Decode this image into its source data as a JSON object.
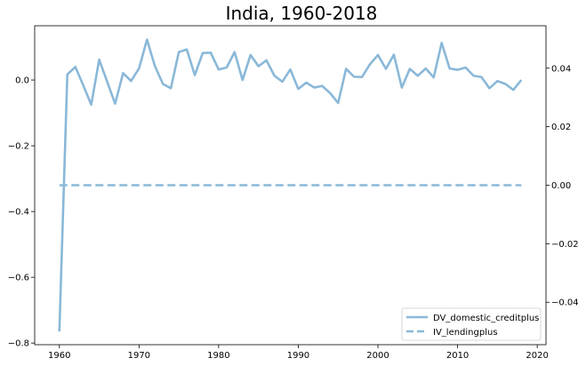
{
  "chart_data": {
    "type": "line",
    "title": "India, 1960-2018",
    "xlabel": "",
    "ylabel_left": "",
    "ylabel_right": "",
    "xlim": [
      1956.9,
      2021.1
    ],
    "ylim_left": [
      -0.805,
      0.165
    ],
    "ylim_right": [
      -0.0545,
      0.0545
    ],
    "xticks": [
      1960,
      1970,
      1980,
      1990,
      2000,
      2010,
      2020
    ],
    "xtick_labels": [
      "1960",
      "1970",
      "1980",
      "1990",
      "2000",
      "2010",
      "2020"
    ],
    "yticks_left": [
      0.0,
      -0.2,
      -0.4,
      -0.6,
      -0.8
    ],
    "ytick_labels_left": [
      "0.0",
      "−0.2",
      "−0.4",
      "−0.6",
      "−0.8"
    ],
    "yticks_right": [
      0.04,
      0.02,
      0.0,
      -0.02,
      -0.04
    ],
    "ytick_labels_right": [
      "0.04",
      "0.02",
      "0.00",
      "−0.02",
      "−0.04"
    ],
    "grid": false,
    "legend_position": "lower-right",
    "series": [
      {
        "name": "DV_domestic_creditplus",
        "axis": "left",
        "style": "solid",
        "color": "#8ab8d8",
        "x": [
          1960,
          1961,
          1962,
          1963,
          1964,
          1965,
          1966,
          1967,
          1968,
          1969,
          1970,
          1971,
          1972,
          1973,
          1974,
          1975,
          1976,
          1977,
          1978,
          1979,
          1980,
          1981,
          1982,
          1983,
          1984,
          1985,
          1986,
          1987,
          1988,
          1989,
          1990,
          1991,
          1992,
          1993,
          1994,
          1995,
          1996,
          1997,
          1998,
          1999,
          2000,
          2001,
          2002,
          2003,
          2004,
          2005,
          2006,
          2007,
          2008,
          2009,
          2010,
          2011,
          2012,
          2013,
          2014,
          2015,
          2016,
          2017,
          2018
        ],
        "y": [
          -0.765,
          0.017,
          0.04,
          -0.016,
          -0.075,
          0.062,
          -0.005,
          -0.072,
          0.021,
          -0.003,
          0.035,
          0.123,
          0.042,
          -0.012,
          -0.025,
          0.085,
          0.093,
          0.015,
          0.082,
          0.083,
          0.032,
          0.038,
          0.085,
          0.0,
          0.076,
          0.042,
          0.06,
          0.013,
          -0.005,
          0.032,
          -0.027,
          -0.008,
          -0.023,
          -0.018,
          -0.04,
          -0.07,
          0.034,
          0.01,
          0.009,
          0.048,
          0.076,
          0.034,
          0.077,
          -0.023,
          0.034,
          0.013,
          0.035,
          0.008,
          0.113,
          0.035,
          0.031,
          0.038,
          0.013,
          0.009,
          -0.025,
          -0.003,
          -0.012,
          -0.03,
          0.0
        ]
      },
      {
        "name": "IV_lendingplus",
        "axis": "right",
        "style": "dashed",
        "color": "#8ab8d8",
        "x": [
          1960,
          2018
        ],
        "y": [
          0.0,
          0.0
        ]
      }
    ]
  }
}
